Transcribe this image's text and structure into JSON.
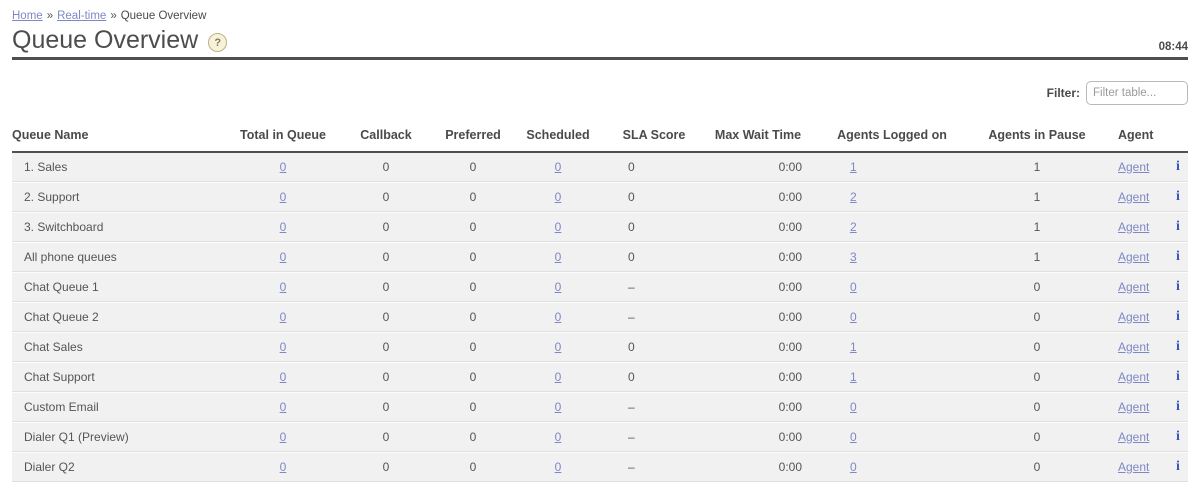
{
  "breadcrumb": {
    "separator": "»",
    "items": [
      {
        "label": "Home",
        "link": true
      },
      {
        "label": "Real-time",
        "link": true
      },
      {
        "label": "Queue Overview",
        "link": false
      }
    ]
  },
  "header": {
    "title": "Queue Overview",
    "help_icon": "?",
    "time": "08:44"
  },
  "filter": {
    "label": "Filter:",
    "placeholder": "Filter table..."
  },
  "table": {
    "columns": [
      "Queue Name",
      "Total in Queue",
      "Callback",
      "Preferred",
      "Scheduled",
      "SLA Score",
      "Max Wait Time",
      "Agents Logged on",
      "Agents in Pause",
      "Agent"
    ],
    "labels": {
      "agent_link": "Agent",
      "info_icon": "i"
    },
    "rows": [
      {
        "queue_name": "1. Sales",
        "total_in_queue": "0",
        "callback": "0",
        "preferred": "0",
        "scheduled": "0",
        "sla_score": "0",
        "max_wait_time": "0:00",
        "agents_logged_on": "1",
        "agents_in_pause": "1"
      },
      {
        "queue_name": "2. Support",
        "total_in_queue": "0",
        "callback": "0",
        "preferred": "0",
        "scheduled": "0",
        "sla_score": "0",
        "max_wait_time": "0:00",
        "agents_logged_on": "2",
        "agents_in_pause": "1"
      },
      {
        "queue_name": "3. Switchboard",
        "total_in_queue": "0",
        "callback": "0",
        "preferred": "0",
        "scheduled": "0",
        "sla_score": "0",
        "max_wait_time": "0:00",
        "agents_logged_on": "2",
        "agents_in_pause": "1"
      },
      {
        "queue_name": "All phone queues",
        "total_in_queue": "0",
        "callback": "0",
        "preferred": "0",
        "scheduled": "0",
        "sla_score": "0",
        "max_wait_time": "0:00",
        "agents_logged_on": "3",
        "agents_in_pause": "1"
      },
      {
        "queue_name": "Chat Queue 1",
        "total_in_queue": "0",
        "callback": "0",
        "preferred": "0",
        "scheduled": "0",
        "sla_score": "–",
        "max_wait_time": "0:00",
        "agents_logged_on": "0",
        "agents_in_pause": "0"
      },
      {
        "queue_name": "Chat Queue 2",
        "total_in_queue": "0",
        "callback": "0",
        "preferred": "0",
        "scheduled": "0",
        "sla_score": "–",
        "max_wait_time": "0:00",
        "agents_logged_on": "0",
        "agents_in_pause": "0"
      },
      {
        "queue_name": "Chat Sales",
        "total_in_queue": "0",
        "callback": "0",
        "preferred": "0",
        "scheduled": "0",
        "sla_score": "0",
        "max_wait_time": "0:00",
        "agents_logged_on": "1",
        "agents_in_pause": "0"
      },
      {
        "queue_name": "Chat Support",
        "total_in_queue": "0",
        "callback": "0",
        "preferred": "0",
        "scheduled": "0",
        "sla_score": "0",
        "max_wait_time": "0:00",
        "agents_logged_on": "1",
        "agents_in_pause": "0"
      },
      {
        "queue_name": "Custom Email",
        "total_in_queue": "0",
        "callback": "0",
        "preferred": "0",
        "scheduled": "0",
        "sla_score": "–",
        "max_wait_time": "0:00",
        "agents_logged_on": "0",
        "agents_in_pause": "0"
      },
      {
        "queue_name": "Dialer Q1 (Preview)",
        "total_in_queue": "0",
        "callback": "0",
        "preferred": "0",
        "scheduled": "0",
        "sla_score": "–",
        "max_wait_time": "0:00",
        "agents_logged_on": "0",
        "agents_in_pause": "0"
      },
      {
        "queue_name": "Dialer Q2",
        "total_in_queue": "0",
        "callback": "0",
        "preferred": "0",
        "scheduled": "0",
        "sla_score": "–",
        "max_wait_time": "0:00",
        "agents_logged_on": "0",
        "agents_in_pause": "0"
      }
    ]
  },
  "colors": {
    "accent_link": "#7e88c6",
    "info_icon": "#3c55bd",
    "title_text": "#4d4d4d",
    "body_text": "#555555",
    "row_background": "#f1f1f1",
    "header_rule": "#4f4f4f",
    "help_icon_background": "#f8f2d8"
  }
}
